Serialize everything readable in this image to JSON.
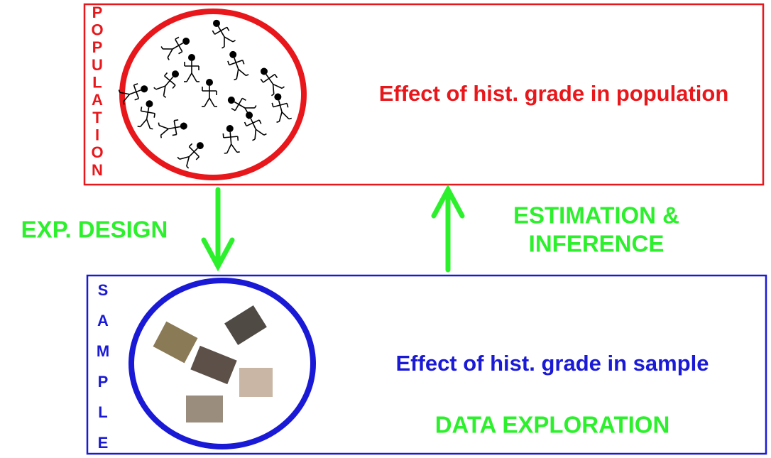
{
  "population": {
    "label_letters": [
      "P",
      "O",
      "P",
      "U",
      "L",
      "A",
      "T",
      "I",
      "O",
      "N"
    ],
    "statement": "Effect of hist. grade in population"
  },
  "sample": {
    "label_letters": [
      "S",
      "A",
      "M",
      "P",
      "L",
      "E"
    ],
    "statement": "Effect of hist. grade in sample",
    "activity": "DATA EXPLORATION"
  },
  "arrows": {
    "down": {
      "label": "EXP. DESIGN"
    },
    "up": {
      "label_lines": [
        "ESTIMATION &",
        "INFERENCE"
      ]
    }
  }
}
